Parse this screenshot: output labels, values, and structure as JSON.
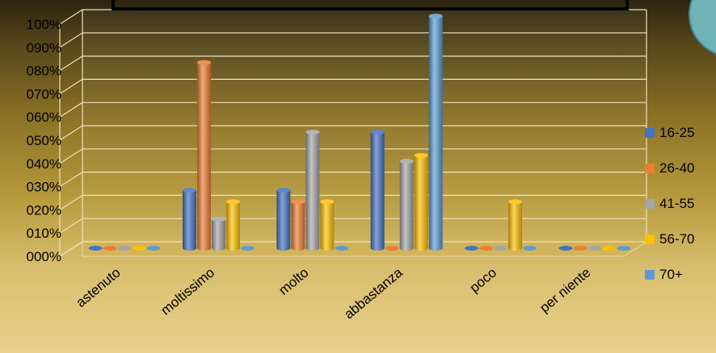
{
  "chart_data": {
    "type": "bar",
    "title": "",
    "xlabel": "",
    "ylabel": "",
    "ylim": [
      0,
      1
    ],
    "y_tick_labels": [
      "000%",
      "010%",
      "020%",
      "030%",
      "040%",
      "050%",
      "060%",
      "070%",
      "080%",
      "090%",
      "100%"
    ],
    "categories": [
      "astenuto",
      "moltissimo",
      "molto",
      "abbastanza",
      "poco",
      "per niente"
    ],
    "series": [
      {
        "name": "16-25",
        "color": "#4472c4",
        "values": [
          0,
          0.25,
          0.25,
          0.5,
          0,
          0
        ]
      },
      {
        "name": "26-40",
        "color": "#ed7d31",
        "values": [
          0,
          0.8,
          0.2,
          0,
          0,
          0
        ]
      },
      {
        "name": "41-55",
        "color": "#a5a5a5",
        "values": [
          0,
          0.125,
          0.5,
          0.375,
          0,
          0
        ]
      },
      {
        "name": "56-70",
        "color": "#ffc000",
        "values": [
          0,
          0.2,
          0.2,
          0.4,
          0.2,
          0
        ]
      },
      {
        "name": "70+",
        "color": "#5b9bd5",
        "values": [
          0,
          0,
          0,
          1.0,
          0,
          0
        ]
      }
    ],
    "grid": true,
    "legend_position": "right",
    "style": "3d-cylinder"
  }
}
